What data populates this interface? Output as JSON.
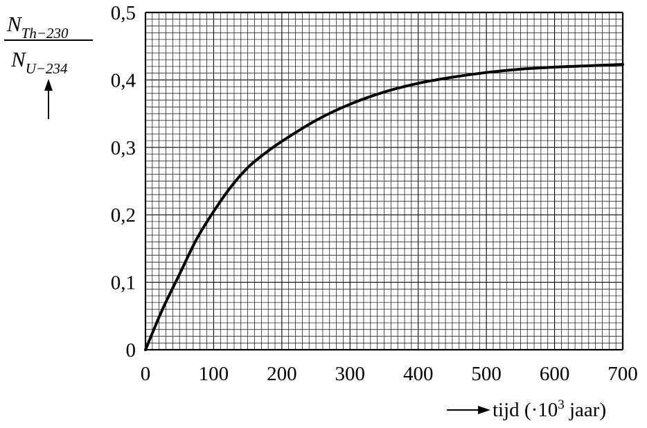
{
  "chart_data": {
    "type": "line",
    "xlabel": {
      "prefix": "tijd (·10",
      "exponent": "3",
      "suffix": " jaar)"
    },
    "ylabel": {
      "numerator_symbol": "N",
      "numerator_subscript": "Th−230",
      "denominator_symbol": "N",
      "denominator_subscript": "U−234"
    },
    "xlim": [
      0,
      700
    ],
    "ylim": [
      0,
      0.5
    ],
    "x_ticks": [
      0,
      100,
      200,
      300,
      400,
      500,
      600,
      700
    ],
    "x_tick_labels": [
      "0",
      "100",
      "200",
      "300",
      "400",
      "500",
      "600",
      "700"
    ],
    "y_ticks": [
      0,
      0.1,
      0.2,
      0.3,
      0.4,
      0.5
    ],
    "y_tick_labels": [
      "0",
      "0,1",
      "0,2",
      "0,3",
      "0,4",
      "0,5"
    ],
    "grid": true,
    "grid_minor_step": {
      "x": 10,
      "y": 0.01
    },
    "series": [
      {
        "color": "#000000",
        "x": [
          0,
          25,
          50,
          75,
          100,
          125,
          150,
          175,
          200,
          250,
          300,
          350,
          400,
          450,
          500,
          550,
          600,
          650,
          700
        ],
        "y": [
          0,
          0.06,
          0.112,
          0.164,
          0.205,
          0.241,
          0.27,
          0.291,
          0.309,
          0.34,
          0.364,
          0.382,
          0.395,
          0.404,
          0.411,
          0.416,
          0.419,
          0.421,
          0.423
        ]
      }
    ]
  }
}
